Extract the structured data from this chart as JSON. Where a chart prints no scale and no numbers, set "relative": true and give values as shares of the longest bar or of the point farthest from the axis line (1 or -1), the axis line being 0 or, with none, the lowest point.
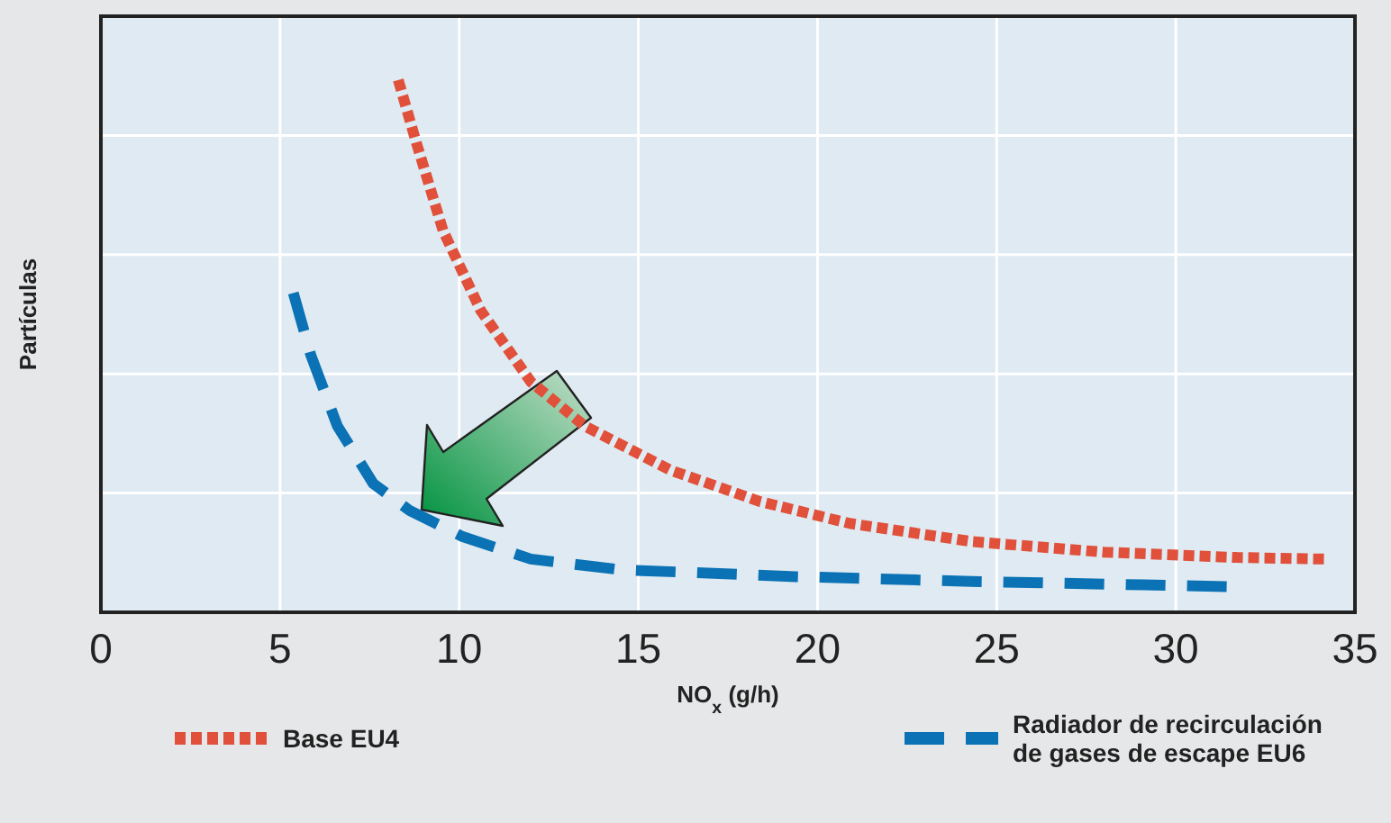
{
  "chart_data": {
    "type": "line",
    "relative": true,
    "ylabel": "Partículas",
    "xlabel": "NO$_{x}$ (g/h)",
    "xlim": [
      0,
      35
    ],
    "xticks": [
      0,
      5,
      10,
      15,
      20,
      25,
      30,
      35
    ],
    "grid": true,
    "legend": "bottom",
    "series": [
      {
        "name": "Base EU4",
        "color": "#e0503a",
        "line_style": "dotted",
        "x": [
          8.3,
          8.8,
          9.55,
          10.6,
          12.0,
          13.5,
          15.9,
          18.4,
          20.9,
          24.3,
          28.0,
          31.7,
          34.2
        ],
        "values": [
          1,
          0.883,
          0.717,
          0.567,
          0.433,
          0.35,
          0.267,
          0.208,
          0.167,
          0.133,
          0.113,
          0.103,
          0.1
        ]
      },
      {
        "name": "Radiador de recirculación de gases de escape EU6",
        "color": "#0a72b5",
        "line_style": "dashed",
        "x": [
          5.37,
          5.86,
          6.6,
          7.6,
          8.6,
          10.1,
          12.0,
          14.5,
          19.4,
          24.3,
          31.7
        ],
        "values": [
          0.6,
          0.483,
          0.35,
          0.242,
          0.192,
          0.142,
          0.1,
          0.08,
          0.067,
          0.058,
          0.048
        ]
      }
    ]
  }
}
